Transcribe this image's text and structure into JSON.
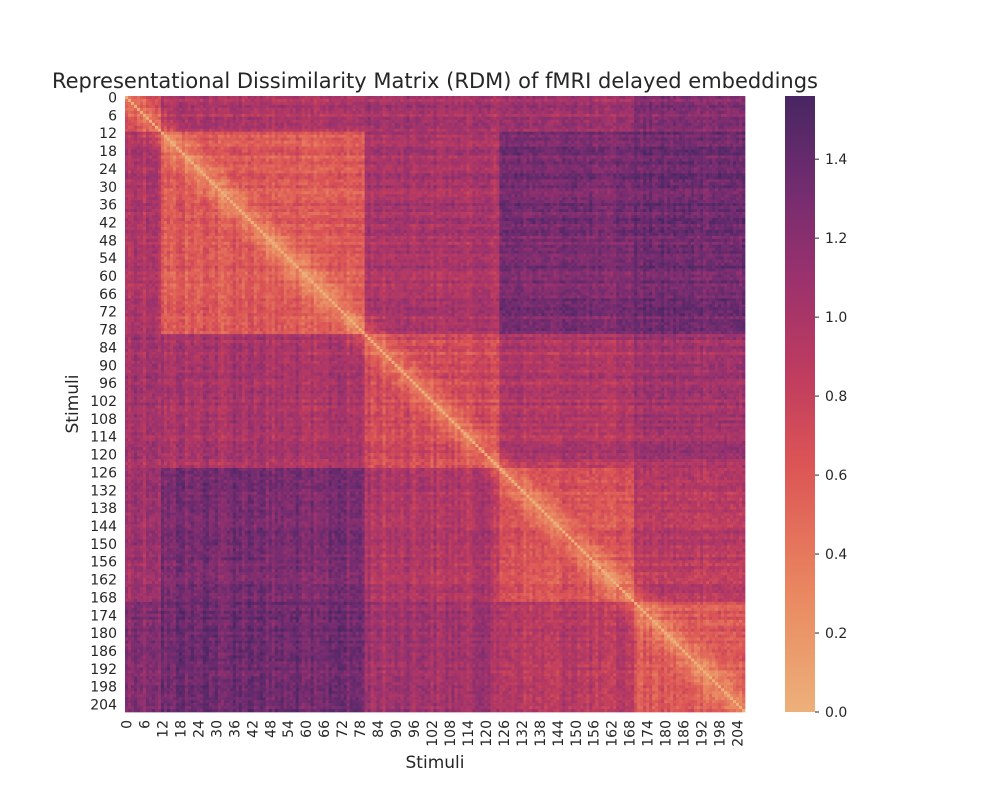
{
  "chart_data": {
    "type": "heatmap",
    "title": "Representational Dissimilarity Matrix (RDM) of fMRI delayed embeddings",
    "xlabel": "Stimuli",
    "ylabel": "Stimuli",
    "n": 207,
    "x_ticks": [
      "0",
      "6",
      "12",
      "18",
      "24",
      "30",
      "36",
      "42",
      "48",
      "54",
      "60",
      "66",
      "72",
      "78",
      "84",
      "90",
      "96",
      "102",
      "108",
      "114",
      "120",
      "126",
      "132",
      "138",
      "144",
      "150",
      "156",
      "162",
      "168",
      "174",
      "180",
      "186",
      "192",
      "198",
      "204"
    ],
    "y_ticks": [
      "0",
      "6",
      "12",
      "18",
      "24",
      "30",
      "36",
      "42",
      "48",
      "54",
      "60",
      "66",
      "72",
      "78",
      "84",
      "90",
      "96",
      "102",
      "108",
      "114",
      "120",
      "126",
      "132",
      "138",
      "144",
      "150",
      "156",
      "162",
      "168",
      "174",
      "180",
      "186",
      "192",
      "198",
      "204"
    ],
    "colorbar": {
      "min": 0.0,
      "max": 1.56,
      "ticks": [
        "0.0",
        "0.2",
        "0.4",
        "0.6",
        "0.8",
        "1.0",
        "1.2",
        "1.4"
      ],
      "colormap": "flare"
    },
    "diagonal_value": 0.0,
    "cluster_boundaries": [
      0,
      12,
      80,
      125,
      170,
      207
    ],
    "block_means": [
      [
        0.7,
        0.95,
        1.0,
        1.05,
        1.2
      ],
      [
        0.95,
        0.6,
        1.0,
        1.3,
        1.35
      ],
      [
        1.0,
        1.0,
        0.7,
        0.95,
        1.05
      ],
      [
        1.05,
        1.3,
        0.95,
        0.65,
        0.9
      ],
      [
        1.2,
        1.35,
        1.05,
        0.9,
        0.6
      ]
    ],
    "grid": false
  }
}
